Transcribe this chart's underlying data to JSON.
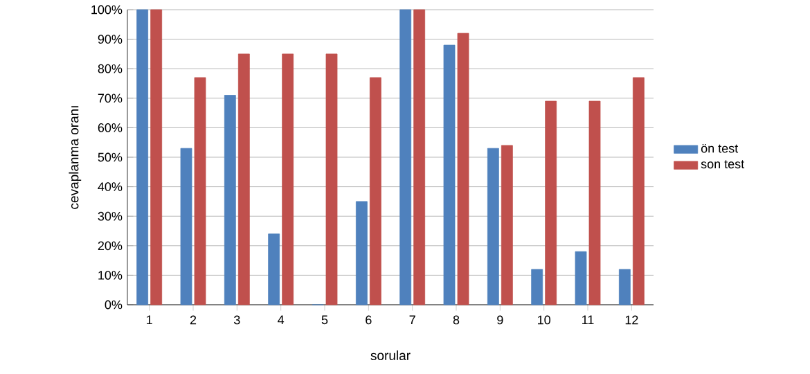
{
  "chart_data": {
    "type": "bar",
    "xlabel": "sorular",
    "ylabel": "cevaplanma oranı",
    "categories": [
      "1",
      "2",
      "3",
      "4",
      "5",
      "6",
      "7",
      "8",
      "9",
      "10",
      "11",
      "12"
    ],
    "series": [
      {
        "name": "ön test",
        "color": "#4f81bd",
        "values": [
          100,
          53,
          71,
          24,
          0,
          35,
          100,
          88,
          53,
          12,
          18,
          12
        ]
      },
      {
        "name": "son test",
        "color": "#c0504d",
        "values": [
          100,
          77,
          85,
          85,
          85,
          77,
          100,
          92,
          54,
          69,
          69,
          77
        ]
      }
    ],
    "ylim": [
      0,
      100
    ],
    "yticks": [
      {
        "value": 0,
        "label": "0%"
      },
      {
        "value": 10,
        "label": "10%"
      },
      {
        "value": 20,
        "label": "20%"
      },
      {
        "value": 30,
        "label": "30%"
      },
      {
        "value": 40,
        "label": "40%"
      },
      {
        "value": 50,
        "label": "50%"
      },
      {
        "value": 60,
        "label": "60%"
      },
      {
        "value": 70,
        "label": "70%"
      },
      {
        "value": 80,
        "label": "80%"
      },
      {
        "value": 90,
        "label": "90%"
      },
      {
        "value": 100,
        "label": "100%"
      }
    ],
    "grid": "y",
    "legend": "right"
  }
}
